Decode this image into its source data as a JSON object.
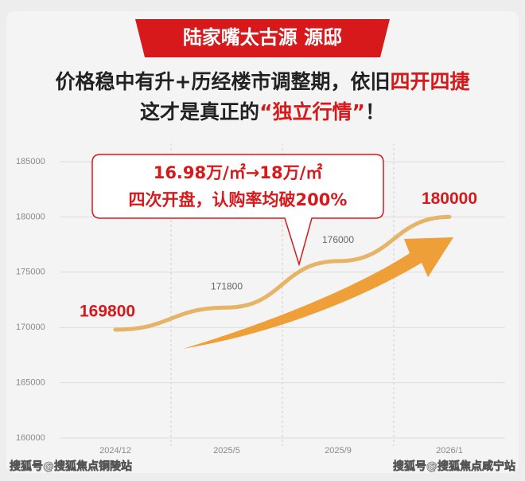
{
  "chart_data": {
    "type": "line",
    "title": "陆家嘴太古源 源邸",
    "headline": [
      {
        "text": "价格稳中有升+历经楼市调整期，依旧",
        "color": "#222222"
      },
      {
        "text": "四开四捷",
        "color": "#d7191c"
      }
    ],
    "subheadline": [
      {
        "text": "这才是真正的",
        "color": "#222222"
      },
      {
        "text": "“独立行情”",
        "color": "#d7191c"
      },
      {
        "text": "！",
        "color": "#222222"
      }
    ],
    "callout": [
      "16.98万/㎡→18万/㎡",
      "四次开盘，认购率均破200%"
    ],
    "categories": [
      "2024/12",
      "2025/5",
      "2025/9",
      "2026/1"
    ],
    "values": [
      169800,
      171800,
      176000,
      180000
    ],
    "color": "#e5b466",
    "ylim": [
      160000,
      185000
    ],
    "yticks": [
      160000,
      165000,
      170000,
      175000,
      180000,
      185000
    ],
    "grid": true,
    "watermarks": [
      "搜狐号@搜狐焦点铜陵站",
      "搜狐号@搜狐焦点咸宁站"
    ]
  }
}
